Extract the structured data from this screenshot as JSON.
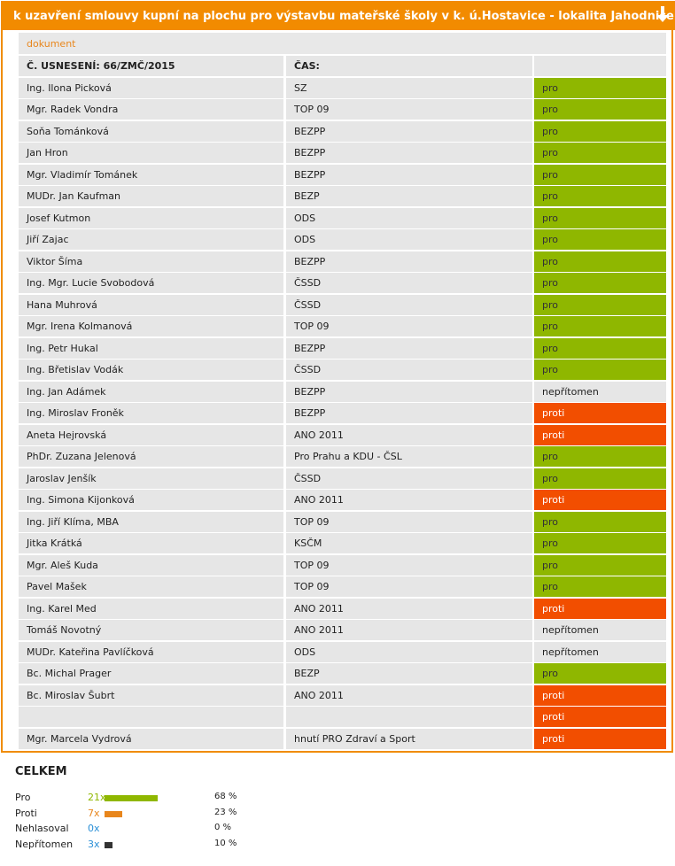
{
  "title": "k uzavření smlouvy kupní na plochu pro výstavbu mateřské školy v k. ú.Hostavice - lokalita Jahodnice",
  "colors": {
    "accent": "#f28b00",
    "pro": "#8fb700",
    "proti": "#f24e00",
    "row_bg": "#e6e6e6"
  },
  "doc_link": "dokument",
  "table_header": {
    "resolution": "Č. USNESENÍ: 66/ZMČ/2015",
    "time": "ČAS:",
    "vote": ""
  },
  "rows": [
    {
      "name": "Ing. Ilona Picková",
      "party": "SZ",
      "vote": "pro",
      "type": "pro"
    },
    {
      "name": "Mgr. Radek Vondra",
      "party": "TOP 09",
      "vote": "pro",
      "type": "pro"
    },
    {
      "name": "Soňa Tománková",
      "party": "BEZPP",
      "vote": "pro",
      "type": "pro"
    },
    {
      "name": "Jan Hron",
      "party": "BEZPP",
      "vote": "pro",
      "type": "pro"
    },
    {
      "name": "Mgr. Vladimír Tománek",
      "party": "BEZPP",
      "vote": "pro",
      "type": "pro"
    },
    {
      "name": "MUDr. Jan Kaufman",
      "party": "BEZP",
      "vote": "pro",
      "type": "pro"
    },
    {
      "name": "Josef Kutmon",
      "party": "ODS",
      "vote": "pro",
      "type": "pro"
    },
    {
      "name": "Jiří Zajac",
      "party": "ODS",
      "vote": "pro",
      "type": "pro"
    },
    {
      "name": "Viktor Šíma",
      "party": "BEZPP",
      "vote": "pro",
      "type": "pro"
    },
    {
      "name": "Ing. Mgr. Lucie Svobodová",
      "party": "ČSSD",
      "vote": "pro",
      "type": "pro"
    },
    {
      "name": "Hana Muhrová",
      "party": "ČSSD",
      "vote": "pro",
      "type": "pro"
    },
    {
      "name": "Mgr. Irena Kolmanová",
      "party": "TOP 09",
      "vote": "pro",
      "type": "pro"
    },
    {
      "name": "Ing. Petr Hukal",
      "party": "BEZPP",
      "vote": "pro",
      "type": "pro"
    },
    {
      "name": "Ing. Břetislav Vodák",
      "party": "ČSSD",
      "vote": "pro",
      "type": "pro"
    },
    {
      "name": "Ing. Jan Adámek",
      "party": "BEZPP",
      "vote": "nepřítomen",
      "type": "nep"
    },
    {
      "name": "Ing. Miroslav Froněk",
      "party": "BEZPP",
      "vote": "proti",
      "type": "proti"
    },
    {
      "name": "Aneta Hejrovská",
      "party": "ANO 2011",
      "vote": "proti",
      "type": "proti"
    },
    {
      "name": "PhDr. Zuzana Jelenová",
      "party": "Pro Prahu a KDU - ČSL",
      "vote": "pro",
      "type": "pro"
    },
    {
      "name": "Jaroslav Jenšík",
      "party": "ČSSD",
      "vote": "pro",
      "type": "pro"
    },
    {
      "name": "Ing. Simona Kijonková",
      "party": "ANO 2011",
      "vote": "proti",
      "type": "proti"
    },
    {
      "name": "Ing. Jiří Klíma, MBA",
      "party": "TOP 09",
      "vote": "pro",
      "type": "pro"
    },
    {
      "name": "Jitka Krátká",
      "party": "KSČM",
      "vote": "pro",
      "type": "pro"
    },
    {
      "name": "Mgr. Aleš Kuda",
      "party": "TOP 09",
      "vote": "pro",
      "type": "pro"
    },
    {
      "name": "Pavel Mašek",
      "party": "TOP 09",
      "vote": "pro",
      "type": "pro"
    },
    {
      "name": "Ing. Karel Med",
      "party": "ANO 2011",
      "vote": "proti",
      "type": "proti"
    },
    {
      "name": "Tomáš Novotný",
      "party": "ANO 2011",
      "vote": "nepřítomen",
      "type": "nep"
    },
    {
      "name": "MUDr. Kateřina Pavlíčková",
      "party": "ODS",
      "vote": "nepřítomen",
      "type": "nep"
    },
    {
      "name": "Bc. Michal Prager",
      "party": "BEZP",
      "vote": "pro",
      "type": "pro"
    },
    {
      "name": "Bc. Miroslav Šubrt",
      "party": "ANO 2011",
      "vote": "proti",
      "type": "proti"
    },
    {
      "name": "",
      "party": "",
      "vote": "proti",
      "type": "proti"
    },
    {
      "name": "Mgr. Marcela Vydrová",
      "party": "hnutí PRO Zdraví a Sport",
      "vote": "proti",
      "type": "proti"
    }
  ],
  "summary": {
    "title": "CELKEM",
    "items": [
      {
        "label": "Pro",
        "count": "21x",
        "percent": "68 %",
        "share": 0.68,
        "color": "#8fb700",
        "count_color": "#8fb700"
      },
      {
        "label": "Proti",
        "count": "7x",
        "percent": "23 %",
        "share": 0.23,
        "color": "#e8861c",
        "count_color": "#e8861c"
      },
      {
        "label": "Nehlasoval",
        "count": "0x",
        "percent": "0 %",
        "share": 0.0,
        "color": "#333333",
        "count_color": "#2a8fd6"
      },
      {
        "label": "Nepřítomen",
        "count": "3x",
        "percent": "10 %",
        "share": 0.1,
        "color": "#333333",
        "count_color": "#2a8fd6"
      }
    ]
  }
}
